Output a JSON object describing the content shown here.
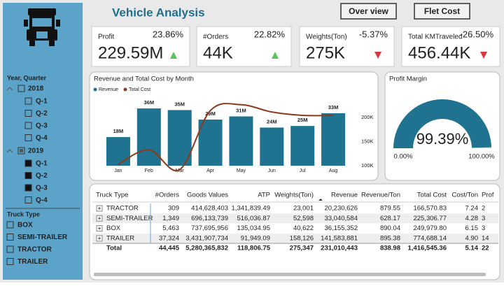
{
  "header": {
    "title": "Vehicle Analysis",
    "buttons": [
      "Over view",
      "Flet Cost"
    ]
  },
  "kpis": [
    {
      "label": "Profit",
      "value": "229.59M",
      "change": "23.86%"
    },
    {
      "label": "#Orders",
      "value": "44K",
      "change": "22.82%"
    },
    {
      "label": "Weights(Ton)",
      "value": "275K",
      "change": "-5.37%"
    },
    {
      "label": "Total KMTraveled",
      "value": "456.44K",
      "change": "-26.50%"
    }
  ],
  "slicers": [
    {
      "title": "Year, Quarter",
      "groups": [
        {
          "label": "2018",
          "checked": false,
          "items": [
            {
              "label": "Q-1",
              "checked": false
            },
            {
              "label": "Q-2",
              "checked": false
            },
            {
              "label": "Q-3",
              "checked": false
            },
            {
              "label": "Q-4",
              "checked": false
            }
          ]
        },
        {
          "label": "2019",
          "checked": "partial",
          "items": [
            {
              "label": "Q-1",
              "checked": true
            },
            {
              "label": "Q-2",
              "checked": true
            },
            {
              "label": "Q-3",
              "checked": true
            },
            {
              "label": "Q-4",
              "checked": false
            }
          ]
        }
      ]
    },
    {
      "title": "Truck Type",
      "items": [
        {
          "label": "BOX",
          "checked": false
        },
        {
          "label": "SEMI-TRAILER",
          "checked": false
        },
        {
          "label": "TRACTOR",
          "checked": false
        },
        {
          "label": "TRAILER",
          "checked": false
        }
      ]
    }
  ],
  "chart_data": [
    {
      "type": "bar-line",
      "title": "Revenue and Total Cost by Month",
      "categories": [
        "Jan",
        "Feb",
        "Mar",
        "Apr",
        "May",
        "Jun",
        "Jul",
        "Aug"
      ],
      "series": [
        {
          "name": "Revenue",
          "color": "#1f7391",
          "values": [
            18000000,
            36000000,
            35000000,
            29000000,
            31000000,
            24000000,
            25000000,
            33000000
          ],
          "value_labels": [
            "18M",
            "36M",
            "35M",
            "29M",
            "31M",
            "24M",
            "25M",
            "33M"
          ]
        },
        {
          "name": "Total Cost",
          "color": "#8b3a1a",
          "axis": "y2",
          "values": [
            103000,
            133000,
            92000,
            214000,
            226000,
            211000,
            204000,
            204000
          ]
        }
      ],
      "ylim": [
        0,
        40000000
      ],
      "y2lim": [
        90000,
        230000
      ],
      "y2ticks": [
        {
          "value": 100000,
          "label": "100K"
        },
        {
          "value": 150000,
          "label": "150K"
        },
        {
          "value": 200000,
          "label": "200K"
        }
      ]
    },
    {
      "type": "gauge",
      "title": "Profit Margin",
      "value": 99.39,
      "value_label": "99.39%",
      "min": {
        "value": 0,
        "label": "0.00%"
      },
      "max": {
        "value": 100,
        "label": "100.00%"
      },
      "color": "#1f7391"
    }
  ],
  "table": {
    "columns": [
      "Truck Type",
      "#Orders",
      "Goods Values",
      "ATP",
      "Weights(Ton)",
      "Revenue",
      "Revenue/Ton",
      "Total Cost",
      "Cost/Ton",
      "Prof"
    ],
    "rows": [
      [
        "TRACTOR",
        "309",
        "414,628,403",
        "1,341,839.49",
        "23,001",
        "20,230,626",
        "879.55",
        "166,570.83",
        "7.24",
        "2"
      ],
      [
        "SEMI-TRAILER",
        "1,349",
        "696,133,739",
        "516,036.87",
        "52,598",
        "33,040,584",
        "628.17",
        "225,306.77",
        "4.28",
        "3"
      ],
      [
        "BOX",
        "5,463",
        "737,695,956",
        "135,034.95",
        "40,622",
        "36,155,352",
        "890.04",
        "249,979.80",
        "6.15",
        "3"
      ],
      [
        "TRAILER",
        "37,324",
        "3,431,907,734",
        "91,949.09",
        "158,126",
        "141,583,881",
        "895.38",
        "774,688.14",
        "4.90",
        "14"
      ]
    ],
    "total": [
      "Total",
      "44,445",
      "5,280,365,832",
      "118,806.75",
      "275,347",
      "231,010,443",
      "838.98",
      "1,416,545.36",
      "5.14",
      "22"
    ]
  }
}
